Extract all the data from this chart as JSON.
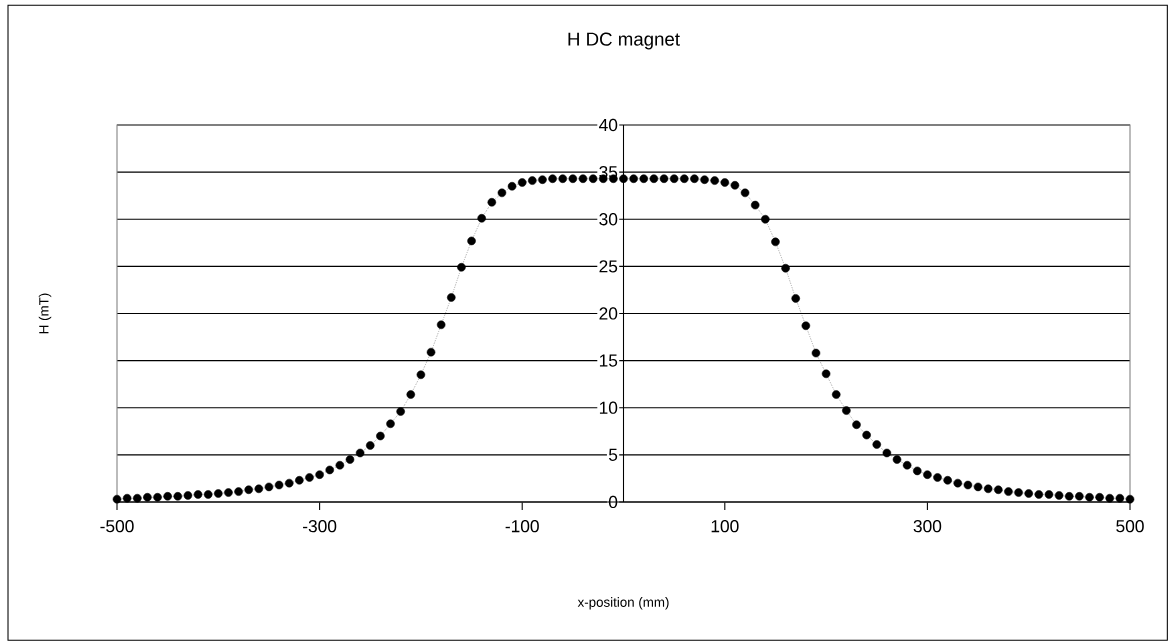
{
  "chart_data": {
    "type": "line",
    "title": "H DC magnet",
    "xlabel": "x-position (mm)",
    "ylabel": "H (mT)",
    "x": [
      -500,
      -490,
      -480,
      -470,
      -460,
      -450,
      -440,
      -430,
      -420,
      -410,
      -400,
      -390,
      -380,
      -370,
      -360,
      -350,
      -340,
      -330,
      -320,
      -310,
      -300,
      -290,
      -280,
      -270,
      -260,
      -250,
      -240,
      -230,
      -220,
      -210,
      -200,
      -190,
      -180,
      -170,
      -160,
      -150,
      -140,
      -130,
      -120,
      -110,
      -100,
      -90,
      -80,
      -70,
      -60,
      -50,
      -40,
      -30,
      -20,
      -10,
      0,
      10,
      20,
      30,
      40,
      50,
      60,
      70,
      80,
      90,
      100,
      110,
      120,
      130,
      140,
      150,
      160,
      170,
      180,
      190,
      200,
      210,
      220,
      230,
      240,
      250,
      260,
      270,
      280,
      290,
      300,
      310,
      320,
      330,
      340,
      350,
      360,
      370,
      380,
      390,
      400,
      410,
      420,
      430,
      440,
      450,
      460,
      470,
      480,
      490,
      500
    ],
    "values": [
      0.3,
      0.4,
      0.4,
      0.5,
      0.5,
      0.6,
      0.6,
      0.7,
      0.8,
      0.8,
      0.9,
      1.0,
      1.1,
      1.3,
      1.4,
      1.6,
      1.8,
      2.0,
      2.3,
      2.6,
      2.9,
      3.4,
      3.9,
      4.5,
      5.2,
      6.0,
      7.0,
      8.3,
      9.6,
      11.4,
      13.5,
      15.9,
      18.8,
      21.7,
      24.9,
      27.7,
      30.1,
      31.8,
      32.8,
      33.5,
      33.9,
      34.1,
      34.2,
      34.3,
      34.3,
      34.3,
      34.3,
      34.3,
      34.3,
      34.3,
      34.3,
      34.3,
      34.3,
      34.3,
      34.3,
      34.3,
      34.3,
      34.3,
      34.2,
      34.1,
      33.9,
      33.6,
      32.8,
      31.5,
      30.0,
      27.6,
      24.8,
      21.6,
      18.7,
      15.8,
      13.6,
      11.4,
      9.7,
      8.2,
      7.1,
      6.1,
      5.2,
      4.5,
      3.9,
      3.3,
      2.9,
      2.6,
      2.3,
      2.0,
      1.8,
      1.6,
      1.4,
      1.3,
      1.1,
      1.0,
      0.9,
      0.8,
      0.8,
      0.7,
      0.6,
      0.6,
      0.5,
      0.5,
      0.4,
      0.4,
      0.3
    ],
    "color": "#000000",
    "marker": "circle",
    "line_style": "dotted",
    "xlim": [
      -500,
      500
    ],
    "ylim": [
      0,
      40
    ],
    "xticks": [
      -500,
      -300,
      -100,
      100,
      300,
      500
    ],
    "yticks": [
      0,
      5,
      10,
      15,
      20,
      25,
      30,
      35,
      40
    ],
    "grid": "y"
  }
}
